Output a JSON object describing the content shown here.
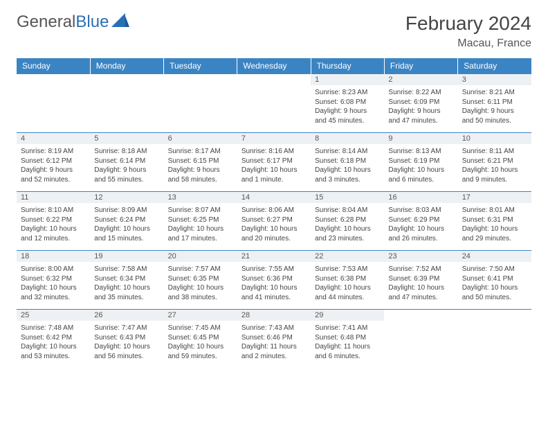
{
  "brand": {
    "part1": "General",
    "part2": "Blue"
  },
  "title": "February 2024",
  "location": "Macau, France",
  "colors": {
    "header_bg": "#3b84c4",
    "header_text": "#ffffff",
    "daynum_bg": "#eef1f4",
    "rule": "#3b84c4",
    "text": "#444444",
    "brand_gray": "#555555",
    "brand_blue": "#2a6fb5",
    "page_bg": "#ffffff"
  },
  "typography": {
    "month_title_size": 28,
    "location_size": 16,
    "weekday_size": 12,
    "daynum_size": 11,
    "cell_size": 10
  },
  "weekdays": [
    "Sunday",
    "Monday",
    "Tuesday",
    "Wednesday",
    "Thursday",
    "Friday",
    "Saturday"
  ],
  "weeks": [
    [
      null,
      null,
      null,
      null,
      {
        "n": "1",
        "sr": "Sunrise: 8:23 AM",
        "ss": "Sunset: 6:08 PM",
        "d1": "Daylight: 9 hours",
        "d2": "and 45 minutes."
      },
      {
        "n": "2",
        "sr": "Sunrise: 8:22 AM",
        "ss": "Sunset: 6:09 PM",
        "d1": "Daylight: 9 hours",
        "d2": "and 47 minutes."
      },
      {
        "n": "3",
        "sr": "Sunrise: 8:21 AM",
        "ss": "Sunset: 6:11 PM",
        "d1": "Daylight: 9 hours",
        "d2": "and 50 minutes."
      }
    ],
    [
      {
        "n": "4",
        "sr": "Sunrise: 8:19 AM",
        "ss": "Sunset: 6:12 PM",
        "d1": "Daylight: 9 hours",
        "d2": "and 52 minutes."
      },
      {
        "n": "5",
        "sr": "Sunrise: 8:18 AM",
        "ss": "Sunset: 6:14 PM",
        "d1": "Daylight: 9 hours",
        "d2": "and 55 minutes."
      },
      {
        "n": "6",
        "sr": "Sunrise: 8:17 AM",
        "ss": "Sunset: 6:15 PM",
        "d1": "Daylight: 9 hours",
        "d2": "and 58 minutes."
      },
      {
        "n": "7",
        "sr": "Sunrise: 8:16 AM",
        "ss": "Sunset: 6:17 PM",
        "d1": "Daylight: 10 hours",
        "d2": "and 1 minute."
      },
      {
        "n": "8",
        "sr": "Sunrise: 8:14 AM",
        "ss": "Sunset: 6:18 PM",
        "d1": "Daylight: 10 hours",
        "d2": "and 3 minutes."
      },
      {
        "n": "9",
        "sr": "Sunrise: 8:13 AM",
        "ss": "Sunset: 6:19 PM",
        "d1": "Daylight: 10 hours",
        "d2": "and 6 minutes."
      },
      {
        "n": "10",
        "sr": "Sunrise: 8:11 AM",
        "ss": "Sunset: 6:21 PM",
        "d1": "Daylight: 10 hours",
        "d2": "and 9 minutes."
      }
    ],
    [
      {
        "n": "11",
        "sr": "Sunrise: 8:10 AM",
        "ss": "Sunset: 6:22 PM",
        "d1": "Daylight: 10 hours",
        "d2": "and 12 minutes."
      },
      {
        "n": "12",
        "sr": "Sunrise: 8:09 AM",
        "ss": "Sunset: 6:24 PM",
        "d1": "Daylight: 10 hours",
        "d2": "and 15 minutes."
      },
      {
        "n": "13",
        "sr": "Sunrise: 8:07 AM",
        "ss": "Sunset: 6:25 PM",
        "d1": "Daylight: 10 hours",
        "d2": "and 17 minutes."
      },
      {
        "n": "14",
        "sr": "Sunrise: 8:06 AM",
        "ss": "Sunset: 6:27 PM",
        "d1": "Daylight: 10 hours",
        "d2": "and 20 minutes."
      },
      {
        "n": "15",
        "sr": "Sunrise: 8:04 AM",
        "ss": "Sunset: 6:28 PM",
        "d1": "Daylight: 10 hours",
        "d2": "and 23 minutes."
      },
      {
        "n": "16",
        "sr": "Sunrise: 8:03 AM",
        "ss": "Sunset: 6:29 PM",
        "d1": "Daylight: 10 hours",
        "d2": "and 26 minutes."
      },
      {
        "n": "17",
        "sr": "Sunrise: 8:01 AM",
        "ss": "Sunset: 6:31 PM",
        "d1": "Daylight: 10 hours",
        "d2": "and 29 minutes."
      }
    ],
    [
      {
        "n": "18",
        "sr": "Sunrise: 8:00 AM",
        "ss": "Sunset: 6:32 PM",
        "d1": "Daylight: 10 hours",
        "d2": "and 32 minutes."
      },
      {
        "n": "19",
        "sr": "Sunrise: 7:58 AM",
        "ss": "Sunset: 6:34 PM",
        "d1": "Daylight: 10 hours",
        "d2": "and 35 minutes."
      },
      {
        "n": "20",
        "sr": "Sunrise: 7:57 AM",
        "ss": "Sunset: 6:35 PM",
        "d1": "Daylight: 10 hours",
        "d2": "and 38 minutes."
      },
      {
        "n": "21",
        "sr": "Sunrise: 7:55 AM",
        "ss": "Sunset: 6:36 PM",
        "d1": "Daylight: 10 hours",
        "d2": "and 41 minutes."
      },
      {
        "n": "22",
        "sr": "Sunrise: 7:53 AM",
        "ss": "Sunset: 6:38 PM",
        "d1": "Daylight: 10 hours",
        "d2": "and 44 minutes."
      },
      {
        "n": "23",
        "sr": "Sunrise: 7:52 AM",
        "ss": "Sunset: 6:39 PM",
        "d1": "Daylight: 10 hours",
        "d2": "and 47 minutes."
      },
      {
        "n": "24",
        "sr": "Sunrise: 7:50 AM",
        "ss": "Sunset: 6:41 PM",
        "d1": "Daylight: 10 hours",
        "d2": "and 50 minutes."
      }
    ],
    [
      {
        "n": "25",
        "sr": "Sunrise: 7:48 AM",
        "ss": "Sunset: 6:42 PM",
        "d1": "Daylight: 10 hours",
        "d2": "and 53 minutes."
      },
      {
        "n": "26",
        "sr": "Sunrise: 7:47 AM",
        "ss": "Sunset: 6:43 PM",
        "d1": "Daylight: 10 hours",
        "d2": "and 56 minutes."
      },
      {
        "n": "27",
        "sr": "Sunrise: 7:45 AM",
        "ss": "Sunset: 6:45 PM",
        "d1": "Daylight: 10 hours",
        "d2": "and 59 minutes."
      },
      {
        "n": "28",
        "sr": "Sunrise: 7:43 AM",
        "ss": "Sunset: 6:46 PM",
        "d1": "Daylight: 11 hours",
        "d2": "and 2 minutes."
      },
      {
        "n": "29",
        "sr": "Sunrise: 7:41 AM",
        "ss": "Sunset: 6:48 PM",
        "d1": "Daylight: 11 hours",
        "d2": "and 6 minutes."
      },
      null,
      null
    ]
  ]
}
